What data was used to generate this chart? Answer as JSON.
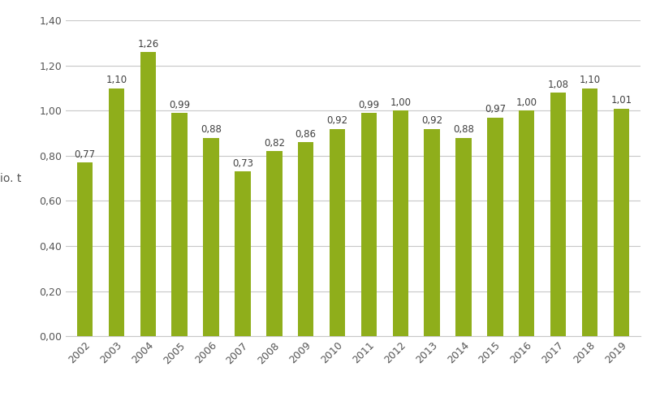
{
  "years": [
    "2002",
    "2003",
    "2004",
    "2005",
    "2006",
    "2007",
    "2008",
    "2009",
    "2010",
    "2011",
    "2012",
    "2013",
    "2014",
    "2015",
    "2016",
    "2017",
    "2018",
    "2019"
  ],
  "values": [
    0.77,
    1.1,
    1.26,
    0.99,
    0.88,
    0.73,
    0.82,
    0.86,
    0.92,
    0.99,
    1.0,
    0.92,
    0.88,
    0.97,
    1.0,
    1.08,
    1.1,
    1.01
  ],
  "bar_color": "#8fae1b",
  "ylabel": "Mio. t",
  "ylim": [
    0,
    1.4
  ],
  "yticks": [
    0.0,
    0.2,
    0.4,
    0.6,
    0.8,
    1.0,
    1.2,
    1.4
  ],
  "background_color": "#ffffff",
  "grid_color": "#c8c8c8",
  "label_fontsize": 8.5,
  "ylabel_fontsize": 10,
  "tick_fontsize": 9,
  "bar_width": 0.5
}
